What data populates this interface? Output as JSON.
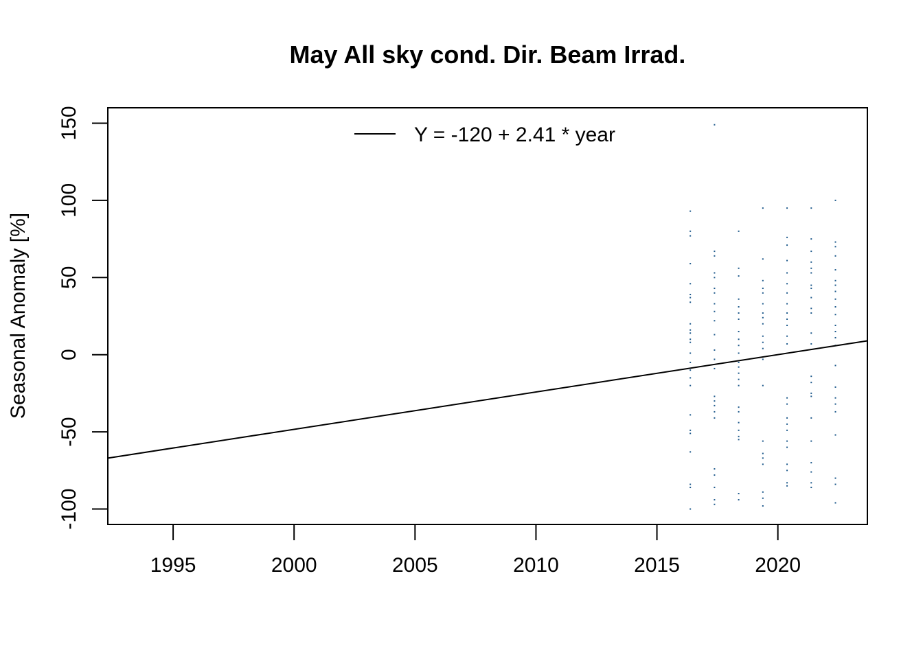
{
  "chart_data": {
    "type": "scatter",
    "title": "May All sky cond. Dir. Beam Irrad.",
    "xlabel": "",
    "ylabel": "Seasonal Anomaly [%]",
    "xlim": [
      1992.3,
      2023.7
    ],
    "ylim": [
      -110,
      160
    ],
    "x_ticks": [
      1995,
      2000,
      2005,
      2010,
      2015,
      2020
    ],
    "x_tick_labels": [
      "1995",
      "2000",
      "2005",
      "2010",
      "2015",
      "2020"
    ],
    "y_ticks": [
      -100,
      -50,
      0,
      50,
      100,
      150
    ],
    "y_tick_labels": [
      "-100",
      "-50",
      "0",
      "50",
      "100",
      "150"
    ],
    "grid": false,
    "legend_position": "top",
    "point_color": "#1f5a8c",
    "line_color": "#000000",
    "series": [
      {
        "kind": "points",
        "points": [
          [
            2016.38,
            93
          ],
          [
            2016.38,
            80
          ],
          [
            2016.38,
            77
          ],
          [
            2016.38,
            59
          ],
          [
            2016.38,
            46
          ],
          [
            2016.38,
            39
          ],
          [
            2016.38,
            37
          ],
          [
            2016.38,
            34
          ],
          [
            2016.38,
            20
          ],
          [
            2016.38,
            16
          ],
          [
            2016.38,
            14
          ],
          [
            2016.38,
            10
          ],
          [
            2016.38,
            8
          ],
          [
            2016.38,
            1
          ],
          [
            2016.38,
            -5
          ],
          [
            2016.38,
            -10
          ],
          [
            2016.38,
            -15
          ],
          [
            2016.38,
            -20
          ],
          [
            2016.38,
            -39
          ],
          [
            2016.38,
            -49
          ],
          [
            2016.38,
            -51
          ],
          [
            2016.38,
            -63
          ],
          [
            2016.38,
            -84
          ],
          [
            2016.38,
            -86
          ],
          [
            2016.38,
            -100
          ],
          [
            2017.38,
            149
          ],
          [
            2017.38,
            67
          ],
          [
            2017.38,
            64
          ],
          [
            2017.38,
            53
          ],
          [
            2017.38,
            50
          ],
          [
            2017.38,
            43
          ],
          [
            2017.38,
            40
          ],
          [
            2017.38,
            33
          ],
          [
            2017.38,
            28
          ],
          [
            2017.38,
            22
          ],
          [
            2017.38,
            13
          ],
          [
            2017.38,
            3
          ],
          [
            2017.38,
            -3
          ],
          [
            2017.38,
            -9
          ],
          [
            2017.38,
            -27
          ],
          [
            2017.38,
            -30
          ],
          [
            2017.38,
            -33
          ],
          [
            2017.38,
            -37
          ],
          [
            2017.38,
            -41
          ],
          [
            2017.38,
            -74
          ],
          [
            2017.38,
            -78
          ],
          [
            2017.38,
            -86
          ],
          [
            2017.38,
            -94
          ],
          [
            2017.38,
            -97
          ],
          [
            2018.38,
            80
          ],
          [
            2018.38,
            56
          ],
          [
            2018.38,
            51
          ],
          [
            2018.38,
            36
          ],
          [
            2018.38,
            31
          ],
          [
            2018.38,
            27
          ],
          [
            2018.38,
            23
          ],
          [
            2018.38,
            15
          ],
          [
            2018.38,
            10
          ],
          [
            2018.38,
            6
          ],
          [
            2018.38,
            1
          ],
          [
            2018.38,
            -5
          ],
          [
            2018.38,
            -8
          ],
          [
            2018.38,
            -12
          ],
          [
            2018.38,
            -16
          ],
          [
            2018.38,
            -20
          ],
          [
            2018.38,
            -34
          ],
          [
            2018.38,
            -37
          ],
          [
            2018.38,
            -44
          ],
          [
            2018.38,
            -49
          ],
          [
            2018.38,
            -53
          ],
          [
            2018.38,
            -55
          ],
          [
            2018.38,
            -90
          ],
          [
            2018.38,
            -94
          ],
          [
            2019.38,
            95
          ],
          [
            2019.38,
            62
          ],
          [
            2019.38,
            48
          ],
          [
            2019.38,
            43
          ],
          [
            2019.38,
            40
          ],
          [
            2019.38,
            33
          ],
          [
            2019.38,
            27
          ],
          [
            2019.38,
            24
          ],
          [
            2019.38,
            20
          ],
          [
            2019.38,
            12
          ],
          [
            2019.38,
            8
          ],
          [
            2019.38,
            4
          ],
          [
            2019.38,
            -3
          ],
          [
            2019.38,
            -20
          ],
          [
            2019.38,
            -56
          ],
          [
            2019.38,
            -64
          ],
          [
            2019.38,
            -67
          ],
          [
            2019.38,
            -71
          ],
          [
            2019.38,
            -89
          ],
          [
            2019.38,
            -93
          ],
          [
            2019.38,
            -98
          ],
          [
            2020.38,
            95
          ],
          [
            2020.38,
            76
          ],
          [
            2020.38,
            71
          ],
          [
            2020.38,
            61
          ],
          [
            2020.38,
            53
          ],
          [
            2020.38,
            46
          ],
          [
            2020.38,
            40
          ],
          [
            2020.38,
            33
          ],
          [
            2020.38,
            27
          ],
          [
            2020.38,
            23
          ],
          [
            2020.38,
            19
          ],
          [
            2020.38,
            12
          ],
          [
            2020.38,
            7
          ],
          [
            2020.38,
            -28
          ],
          [
            2020.38,
            -32
          ],
          [
            2020.38,
            -41
          ],
          [
            2020.38,
            -45
          ],
          [
            2020.38,
            -49
          ],
          [
            2020.38,
            -56
          ],
          [
            2020.38,
            -60
          ],
          [
            2020.38,
            -71
          ],
          [
            2020.38,
            -75
          ],
          [
            2020.38,
            -83
          ],
          [
            2020.38,
            -85
          ],
          [
            2021.38,
            95
          ],
          [
            2021.38,
            75
          ],
          [
            2021.38,
            67
          ],
          [
            2021.38,
            60
          ],
          [
            2021.38,
            56
          ],
          [
            2021.38,
            53
          ],
          [
            2021.38,
            45
          ],
          [
            2021.38,
            43
          ],
          [
            2021.38,
            37
          ],
          [
            2021.38,
            30
          ],
          [
            2021.38,
            27
          ],
          [
            2021.38,
            14
          ],
          [
            2021.38,
            7
          ],
          [
            2021.38,
            -14
          ],
          [
            2021.38,
            -18
          ],
          [
            2021.38,
            -25
          ],
          [
            2021.38,
            -27
          ],
          [
            2021.38,
            -41
          ],
          [
            2021.38,
            -56
          ],
          [
            2021.38,
            -70
          ],
          [
            2021.38,
            -76
          ],
          [
            2021.38,
            -83
          ],
          [
            2021.38,
            -86
          ],
          [
            2022.38,
            100
          ],
          [
            2022.38,
            73
          ],
          [
            2022.38,
            70
          ],
          [
            2022.38,
            64
          ],
          [
            2022.38,
            55
          ],
          [
            2022.38,
            48
          ],
          [
            2022.38,
            45
          ],
          [
            2022.38,
            41
          ],
          [
            2022.38,
            36
          ],
          [
            2022.38,
            31
          ],
          [
            2022.38,
            26
          ],
          [
            2022.38,
            19
          ],
          [
            2022.38,
            15
          ],
          [
            2022.38,
            11
          ],
          [
            2022.38,
            6
          ],
          [
            2022.38,
            -7
          ],
          [
            2022.38,
            -21
          ],
          [
            2022.38,
            -28
          ],
          [
            2022.38,
            -32
          ],
          [
            2022.38,
            -37
          ],
          [
            2022.38,
            -52
          ],
          [
            2022.38,
            -80
          ],
          [
            2022.38,
            -84
          ],
          [
            2022.38,
            -96
          ]
        ]
      },
      {
        "kind": "line",
        "name": "Y = -120 + 2.41 * year",
        "x": [
          1992.3,
          2023.7
        ],
        "y": [
          -67.0,
          9.0
        ]
      }
    ]
  }
}
